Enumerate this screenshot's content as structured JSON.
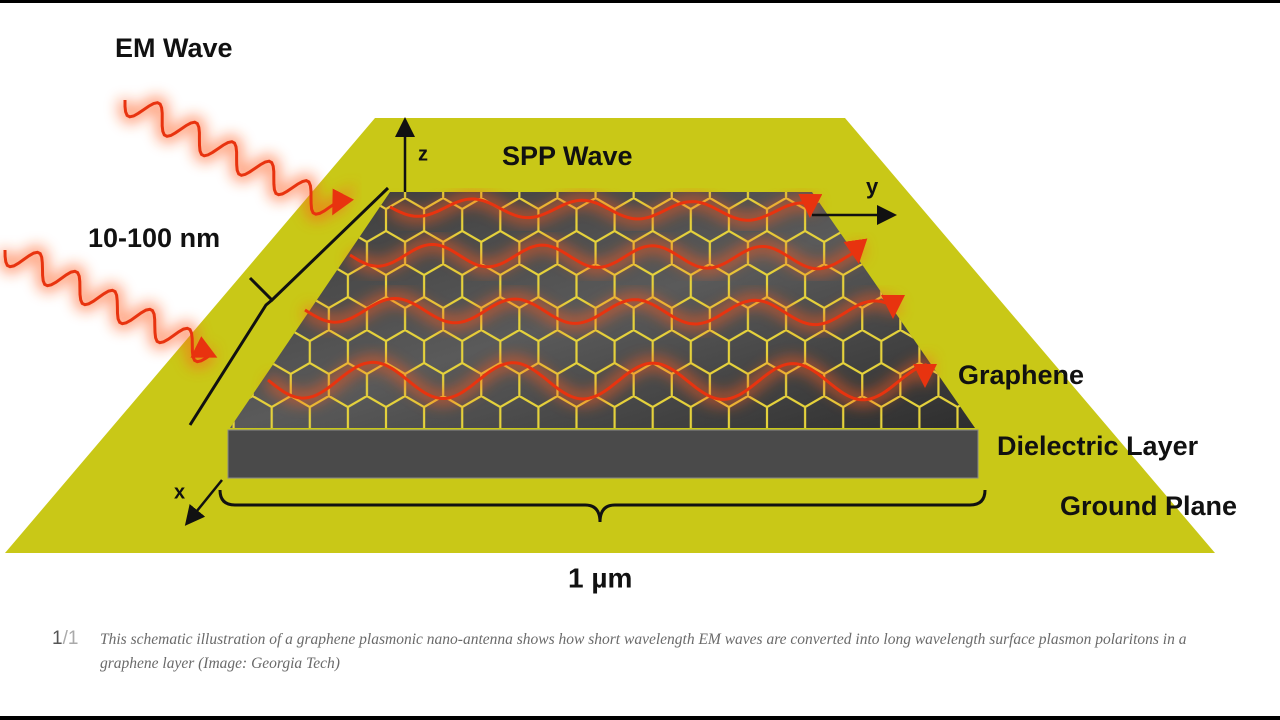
{
  "labels": {
    "em_wave": "EM Wave",
    "spp_wave": "SPP Wave",
    "z_axis": "z",
    "y_axis": "y",
    "x_axis": "x",
    "thickness": "10-100 nm",
    "graphene": "Graphene",
    "dielectric": "Dielectric Layer",
    "ground": "Ground Plane",
    "width": "1 µm"
  },
  "caption": {
    "counter_current": "1",
    "counter_total": "/1",
    "text": "This schematic illustration of a graphene plasmonic nano-antenna shows how short wavelength EM waves are converted into long wavelength surface plasmon polaritons in a graphene layer (Image: Georgia Tech)"
  }
}
